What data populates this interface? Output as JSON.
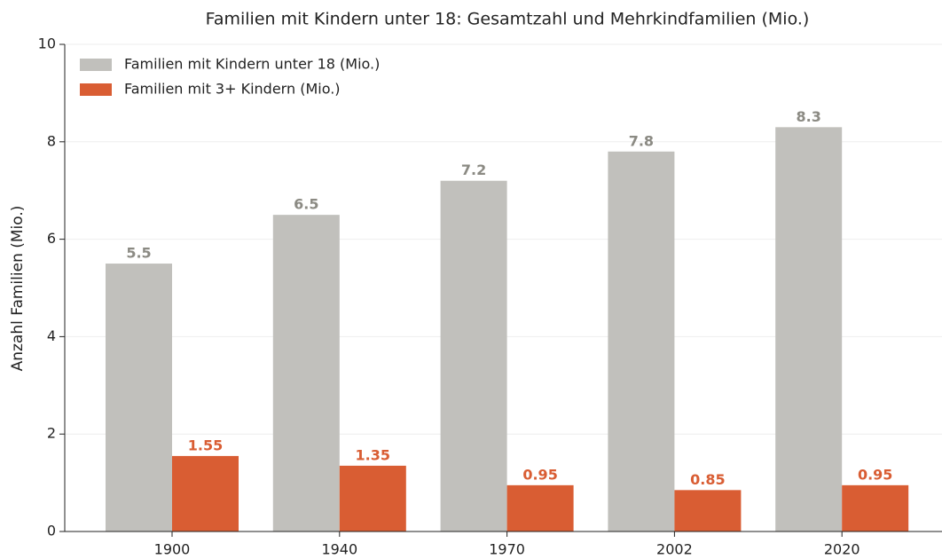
{
  "chart_data": {
    "type": "bar",
    "title": "Familien mit Kindern unter 18: Gesamtzahl und Mehrkindfamilien (Mio.)",
    "y_label": "Anzahl Familien (Mio.)",
    "categories": [
      "1900",
      "1940",
      "1970",
      "2002",
      "2020"
    ],
    "series": [
      {
        "name": "Familien mit Kindern unter 18 (Mio.)",
        "color": "#c1c0bc",
        "label_color": "#8b8a83",
        "values": [
          5.5,
          6.5,
          7.2,
          7.8,
          8.3
        ]
      },
      {
        "name": "Familien mit 3+ Kindern (Mio.)",
        "color": "#d95d33",
        "label_color": "#d95d33",
        "values": [
          1.55,
          1.35,
          0.95,
          0.85,
          0.95
        ]
      }
    ],
    "ylim": [
      0,
      10
    ],
    "yticks": [
      0,
      2,
      4,
      6,
      8,
      10
    ],
    "grid": true,
    "legend": "upper left"
  }
}
